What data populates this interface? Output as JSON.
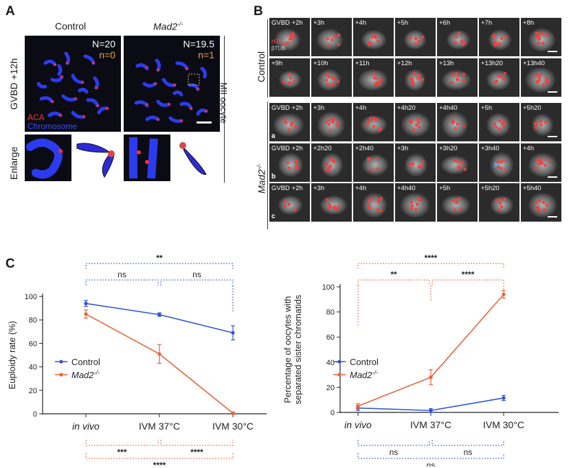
{
  "panel_a": {
    "label": "A",
    "col_control": "Control",
    "col_mad2": "Mad2",
    "mad2_sup": "-/-",
    "row_main": "GVBD +12h",
    "row_enlarge": "Enlarge",
    "side_label": "MII oocyte",
    "control_N": "N=20",
    "control_n": "n=0",
    "mad2_N": "N=19.5",
    "mad2_n": "n=1",
    "legend_aca": "ACA",
    "legend_chrom": "Chromosome",
    "colors": {
      "aca": "#ff3030",
      "chromosome": "#3a4cff",
      "n_orange": "#f0a040"
    }
  },
  "panel_b": {
    "label": "B",
    "control_label": "Control",
    "mad2_label": "Mad2",
    "mad2_sup": "-/-",
    "legend_h2b": "H2B",
    "legend_btub": "βTUB",
    "control_row1": [
      "GVBD +2h",
      "+3h",
      "+4h",
      "+5h",
      "+6h",
      "+7h",
      "+8h"
    ],
    "control_row2": [
      "+9h",
      "+10h",
      "+11h",
      "+12h",
      "+13h",
      "+13h20",
      "+13h40"
    ],
    "mad2_a": {
      "tag": "a",
      "times": [
        "GVBD +2h",
        "+3h",
        "+4h",
        "+4h20",
        "+4h40",
        "+5h",
        "+5h20"
      ]
    },
    "mad2_b": {
      "tag": "b",
      "times": [
        "GVBD +2h",
        "+2h20",
        "+2h40",
        "+3h",
        "+3h20",
        "+3h40",
        "+4h"
      ]
    },
    "mad2_c": {
      "tag": "c",
      "times": [
        "GVBD +2h",
        "+3h",
        "+4h",
        "+4h40",
        "+5h",
        "+5h20",
        "+5h40"
      ]
    }
  },
  "panel_c": {
    "label": "C",
    "legend_control": "Control",
    "legend_mad2": "Mad2",
    "mad2_sup": "-/-",
    "colors": {
      "control": "#2f55d4",
      "mad2": "#e8633a"
    },
    "chart_data": [
      {
        "type": "line",
        "categories": [
          "in vivo",
          "IVM 37°C",
          "IVM 30°C"
        ],
        "ylabel": "Euploidy rate (%)",
        "ylim": [
          0,
          100
        ],
        "yticks": [
          "0",
          "20",
          "40",
          "60",
          "80",
          "100"
        ],
        "series": [
          {
            "name": "Control",
            "values": [
              94,
              84.5,
              69
            ],
            "errors": [
              2.5,
              1.5,
              6
            ]
          },
          {
            "name": "Mad2-/-",
            "values": [
              85,
              51,
              0.5
            ],
            "errors": [
              3.5,
              8,
              1
            ]
          }
        ],
        "top_brackets": {
          "overall": "**",
          "left": "ns",
          "right": "ns"
        },
        "bottom_brackets": {
          "left": "***",
          "right": "****",
          "overall": "****"
        }
      },
      {
        "type": "line",
        "categories": [
          "in vivo",
          "IVM 37°C",
          "IVM 30°C"
        ],
        "ylabel_line1": "Percentage of oocytes with",
        "ylabel_line2": "separated sister chromatids",
        "ylim": [
          0,
          100
        ],
        "yticks": [
          "0",
          "20",
          "40",
          "60",
          "80",
          "100"
        ],
        "series": [
          {
            "name": "Control",
            "values": [
              3.5,
              1.5,
              11.5
            ],
            "errors": [
              2,
              1.5,
              2
            ]
          },
          {
            "name": "Mad2-/-",
            "values": [
              5,
              28,
              94
            ],
            "errors": [
              2,
              6,
              3
            ]
          }
        ],
        "top_brackets": {
          "overall": "****",
          "left": "**",
          "right": "****"
        },
        "bottom_brackets": {
          "left": "ns",
          "right": "ns",
          "overall": "ns"
        }
      }
    ]
  }
}
